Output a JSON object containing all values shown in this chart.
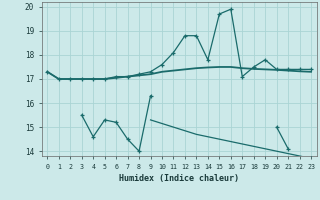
{
  "xlabel": "Humidex (Indice chaleur)",
  "background_color": "#cce9e9",
  "grid_color": "#aad4d4",
  "line_color": "#1a6b6b",
  "xlim": [
    -0.5,
    23.5
  ],
  "ylim": [
    13.8,
    20.2
  ],
  "yticks": [
    14,
    15,
    16,
    17,
    18,
    19,
    20
  ],
  "xticks": [
    0,
    1,
    2,
    3,
    4,
    5,
    6,
    7,
    8,
    9,
    10,
    11,
    12,
    13,
    14,
    15,
    16,
    17,
    18,
    19,
    20,
    21,
    22,
    23
  ],
  "x": [
    0,
    1,
    2,
    3,
    4,
    5,
    6,
    7,
    8,
    9,
    10,
    11,
    12,
    13,
    14,
    15,
    16,
    17,
    18,
    19,
    20,
    21,
    22,
    23
  ],
  "line1": [
    17.3,
    17.0,
    17.0,
    17.0,
    17.0,
    17.0,
    17.1,
    17.1,
    17.2,
    17.3,
    17.6,
    18.1,
    18.8,
    18.8,
    17.8,
    19.7,
    19.9,
    17.1,
    17.5,
    17.8,
    17.4,
    17.4,
    17.4,
    17.4
  ],
  "line2": [
    17.3,
    17.0,
    17.0,
    17.0,
    17.0,
    17.0,
    17.05,
    17.1,
    17.15,
    17.2,
    17.3,
    17.35,
    17.4,
    17.45,
    17.48,
    17.5,
    17.5,
    17.45,
    17.42,
    17.4,
    17.38,
    17.35,
    17.32,
    17.3
  ],
  "line3": [
    null,
    null,
    null,
    15.5,
    14.6,
    15.3,
    15.2,
    14.5,
    14.0,
    16.3,
    null,
    null,
    null,
    null,
    null,
    null,
    null,
    null,
    null,
    null,
    15.0,
    14.1,
    null,
    13.7
  ],
  "line4": [
    null,
    null,
    null,
    null,
    null,
    null,
    null,
    null,
    null,
    15.3,
    15.15,
    15.0,
    14.85,
    14.7,
    14.6,
    14.5,
    14.4,
    14.3,
    14.2,
    14.1,
    14.0,
    13.9,
    13.8,
    13.7
  ]
}
